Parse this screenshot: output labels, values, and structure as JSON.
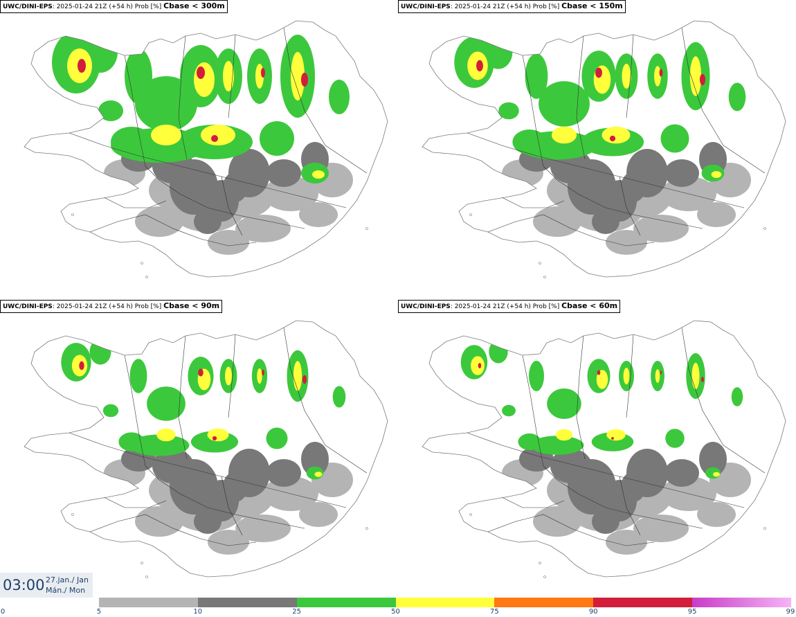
{
  "panels": [
    {
      "model": "UWC/DINI-EPS",
      "run": "2025-01-24 21Z (+54 h) Prob [%]",
      "variable": "Cbase < 300m",
      "intensity": 1.0
    },
    {
      "model": "UWC/DINI-EPS",
      "run": "2025-01-24 21Z (+54 h) Prob [%]",
      "variable": "Cbase < 150m",
      "intensity": 0.82
    },
    {
      "model": "UWC/DINI-EPS",
      "run": "2025-01-24 21Z (+54 h) Prob [%]",
      "variable": "Cbase < 90m",
      "intensity": 0.62
    },
    {
      "model": "UWC/DINI-EPS",
      "run": "2025-01-24 21Z (+54 h) Prob [%]",
      "variable": "Cbase < 60m",
      "intensity": 0.55
    }
  ],
  "time": {
    "clock": "03:00",
    "date_line1": "27.jan./ Jan",
    "date_line2": "Mán./ Mon"
  },
  "legend": {
    "ticks": [
      "0",
      "5",
      "10",
      "25",
      "50",
      "75",
      "90",
      "95",
      "99"
    ],
    "colors": [
      "#ffffff",
      "#b4b4b4",
      "#787878",
      "#3cc83c",
      "#ffff3c",
      "#ff7814",
      "#d21e3c",
      "#c83cc8",
      "#f5b4f5"
    ]
  },
  "colors": {
    "coast": "#7a7a7a",
    "roads": "#333333",
    "time_text": "#1f3f66"
  }
}
